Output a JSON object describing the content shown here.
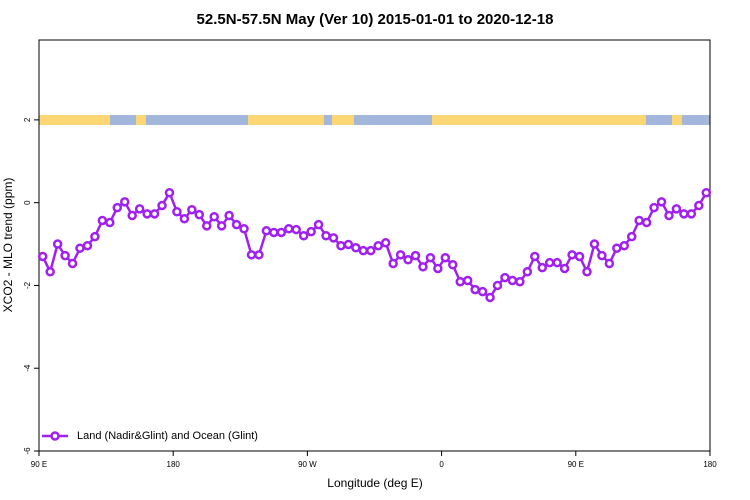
{
  "chart_data": {
    "type": "line",
    "title": "52.5N-57.5N May (Ver 10)   2015-01-01 to 2020-12-18",
    "x_label": "Longitude (deg E)",
    "y_label": "XCO2 - MLO trend (ppm)",
    "xlim": [
      90,
      540
    ],
    "ylim": [
      -6,
      3.93
    ],
    "xticks": [
      {
        "value": 90,
        "label": "90 E"
      },
      180,
      {
        "value": 270,
        "label": "90 W"
      },
      {
        "value": 360,
        "label": "0"
      },
      {
        "value": 450,
        "label": "90 E"
      },
      {
        "value": 540,
        "label": "180"
      }
    ],
    "yticks": [
      -6,
      -4,
      -2,
      0,
      2
    ],
    "legend": "bottom-left",
    "x": [
      92.5,
      97.5,
      102.5,
      107.5,
      112.5,
      117.5,
      122.5,
      127.5,
      132.5,
      137.5,
      142.5,
      147.5,
      152.5,
      157.5,
      162.5,
      167.5,
      172.5,
      177.5,
      182.5,
      187.5,
      192.5,
      197.5,
      202.5,
      207.5,
      212.5,
      217.5,
      222.5,
      227.5,
      232.5,
      237.5,
      242.5,
      247.5,
      252.5,
      257.5,
      262.5,
      267.5,
      272.5,
      277.5,
      282.5,
      287.5,
      292.5,
      297.5,
      302.5,
      307.5,
      312.5,
      317.5,
      322.5,
      327.5,
      332.5,
      337.5,
      342.5,
      347.5,
      352.5,
      357.5,
      362.5,
      367.5,
      372.5,
      377.5,
      382.5,
      387.5,
      392.5,
      397.5,
      402.5,
      407.5,
      412.5,
      417.5,
      422.5,
      427.5,
      432.5,
      437.5,
      442.5,
      447.5,
      452.5,
      457.5,
      462.5,
      467.5,
      472.5,
      477.5,
      482.5,
      487.5,
      492.5,
      497.5,
      502.5,
      507.5,
      512.5,
      517.5,
      522.5,
      527.5,
      532.5,
      537.5
    ],
    "series": [
      {
        "name": "Land (Nadir&Glint) and Ocean (Glint)",
        "color": "#a020f0",
        "values": [
          -1.3,
          -1.67,
          -1.0,
          -1.28,
          -1.47,
          -1.1,
          -1.04,
          -0.82,
          -0.43,
          -0.48,
          -0.12,
          0.02,
          -0.31,
          -0.15,
          -0.27,
          -0.27,
          -0.07,
          0.24,
          -0.22,
          -0.39,
          -0.17,
          -0.29,
          -0.56,
          -0.34,
          -0.56,
          -0.31,
          -0.53,
          -0.63,
          -1.26,
          -1.26,
          -0.68,
          -0.72,
          -0.72,
          -0.63,
          -0.65,
          -0.8,
          -0.7,
          -0.53,
          -0.8,
          -0.85,
          -1.04,
          -1.01,
          -1.09,
          -1.16,
          -1.16,
          -1.04,
          -0.97,
          -1.47,
          -1.26,
          -1.38,
          -1.28,
          -1.55,
          -1.33,
          -1.59,
          -1.33,
          -1.5,
          -1.91,
          -1.88,
          -2.1,
          -2.15,
          -2.29,
          -2.0,
          -1.81,
          -1.88,
          -1.91,
          -1.67,
          -1.3,
          -1.57,
          -1.45,
          -1.45,
          -1.59,
          -1.26,
          -1.3,
          -1.67,
          -1.0,
          -1.28,
          -1.47,
          -1.1,
          -1.04,
          -0.82,
          -0.43,
          -0.48,
          -0.12,
          0.02,
          -0.31,
          -0.15,
          -0.27,
          -0.27,
          -0.07,
          0.24
        ]
      }
    ]
  }
}
